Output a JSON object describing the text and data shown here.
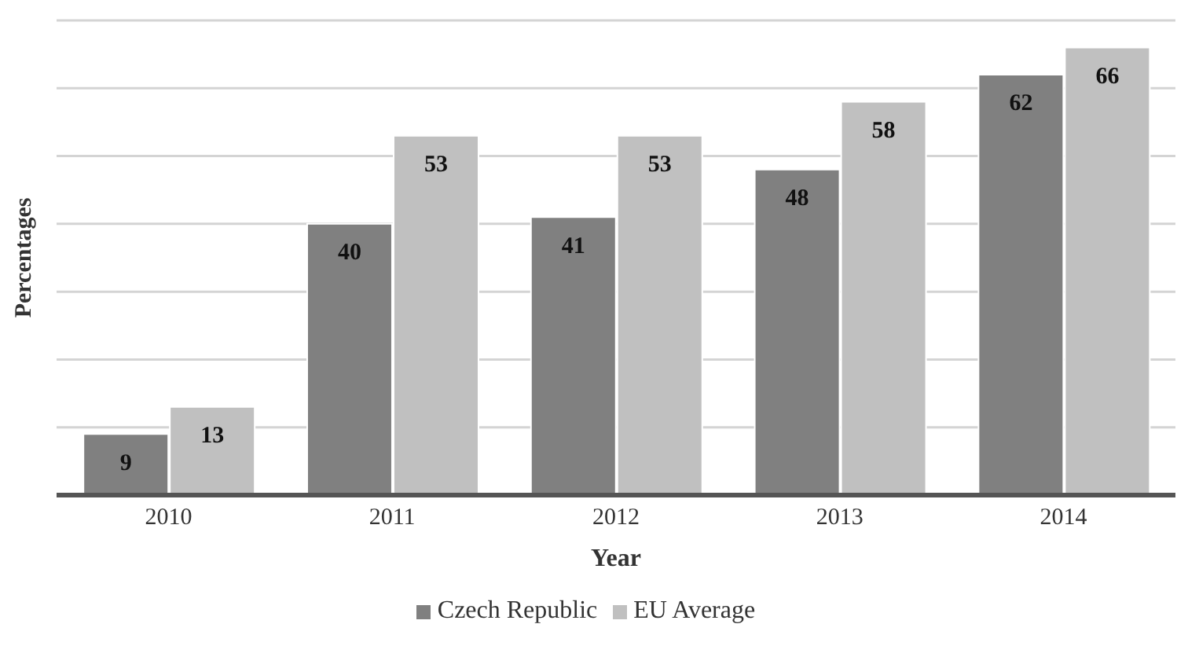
{
  "chart_data": {
    "type": "bar",
    "xlabel": "Year",
    "ylabel": "Percentages",
    "categories": [
      "2010",
      "2011",
      "2012",
      "2013",
      "2014"
    ],
    "series": [
      {
        "name": "Czech Republic",
        "color": "#808080",
        "values": [
          9,
          40,
          41,
          48,
          62
        ]
      },
      {
        "name": "EU Average",
        "color": "#c0c0c0",
        "values": [
          13,
          53,
          53,
          58,
          66
        ]
      }
    ],
    "ylim": [
      0,
      70
    ],
    "yticks": [
      {
        "value": 0,
        "label": null
      },
      {
        "value": 10,
        "label": null
      },
      {
        "value": 20,
        "label": null
      },
      {
        "value": 30,
        "label": null
      },
      {
        "value": 40,
        "label": null
      },
      {
        "value": 50,
        "label": null
      },
      {
        "value": 60,
        "label": null
      },
      {
        "value": 70,
        "label": null
      }
    ],
    "grid": "y",
    "tick_labels": "x",
    "legend": "bottom",
    "data_labels": true
  }
}
